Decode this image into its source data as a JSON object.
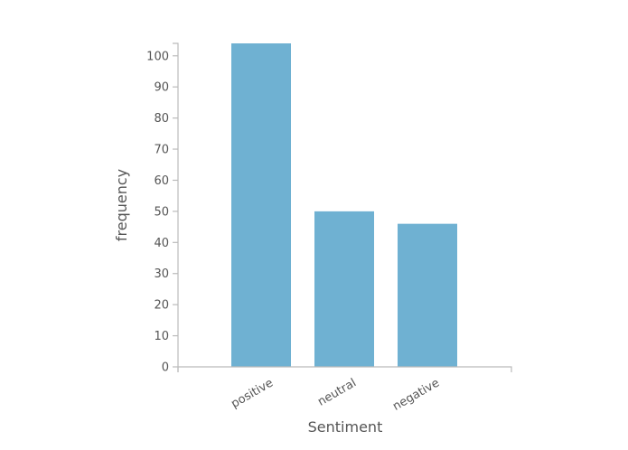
{
  "chart_data": {
    "type": "bar",
    "categories": [
      "positive",
      "neutral",
      "negative"
    ],
    "values": [
      104,
      50,
      46
    ],
    "xlabel": "Sentiment",
    "ylabel": "frequency",
    "ylim": [
      0,
      104
    ],
    "yticks": [
      0,
      10,
      20,
      30,
      40,
      50,
      60,
      70,
      80,
      90,
      100
    ],
    "grid": false,
    "legend": "none",
    "bar_color": "#6fb1d2",
    "axis_color": "#bbbbbb",
    "text_color": "#555555"
  }
}
